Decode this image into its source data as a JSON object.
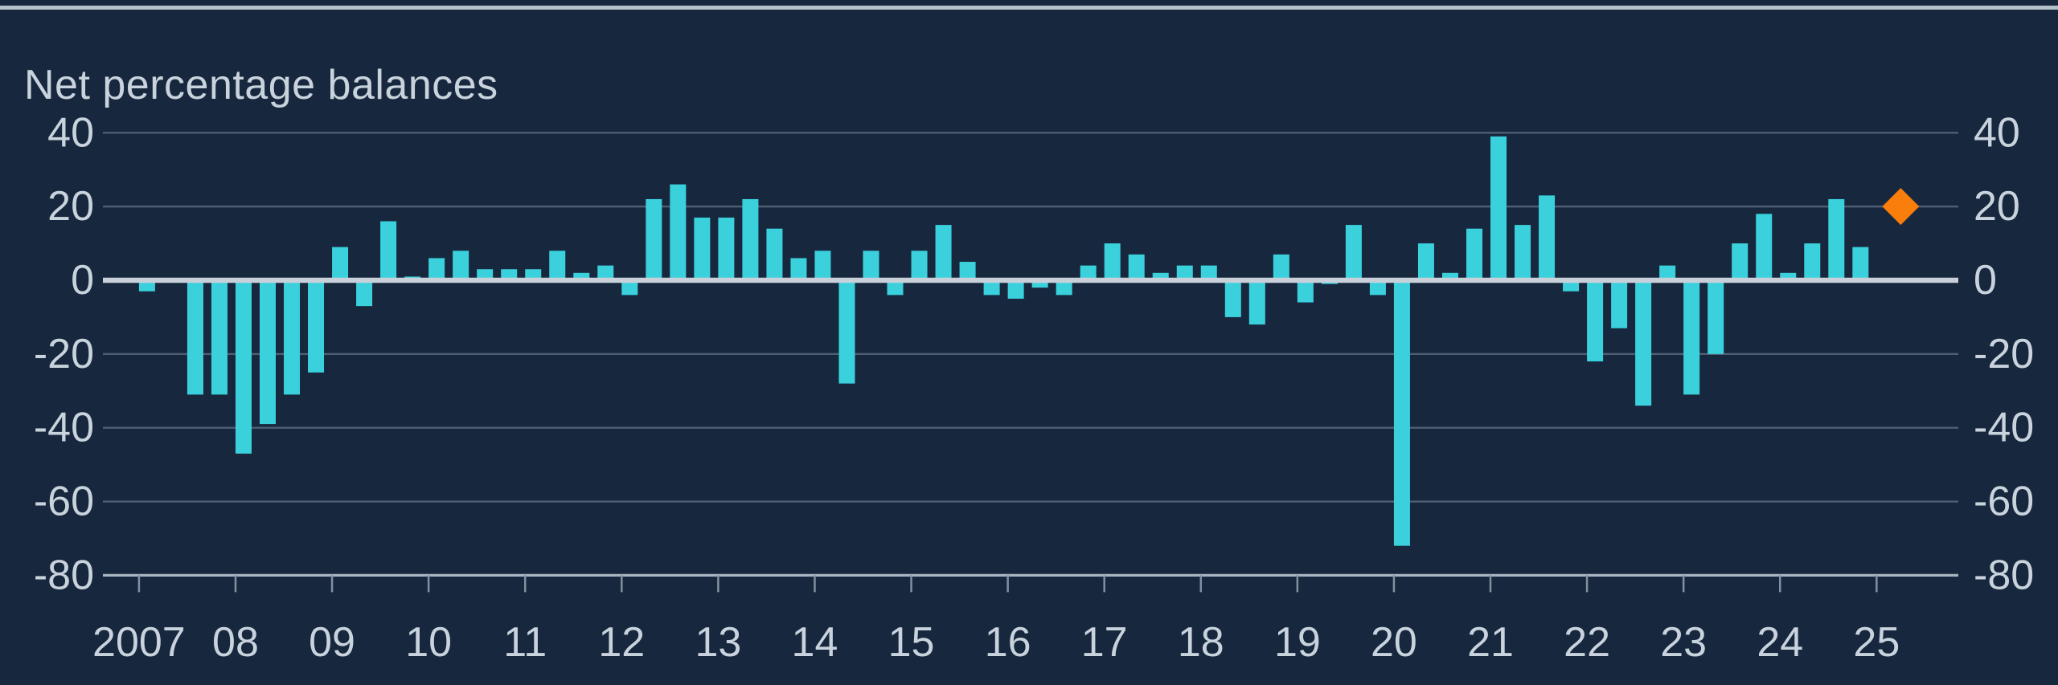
{
  "title": "Net percentage balances",
  "colors": {
    "background": "#17283E",
    "top_border": "#B5C1CB",
    "bar": "#3AD1DD",
    "diamond": "#F97E0C",
    "zero_line": "#C8D1DA",
    "gridline": "#4E5F73",
    "axis_line": "#A9B5C2",
    "tick_mark": "#8290A0",
    "text": "#C9D3DD"
  },
  "y_axis": {
    "left_labels": [
      "40",
      "20",
      "0",
      "-20",
      "-40",
      "-60",
      "-80"
    ],
    "right_labels": [
      "40",
      "20",
      "0",
      "-20",
      "-40",
      "-60",
      "-80"
    ]
  },
  "x_axis": {
    "labels": [
      "2007",
      "08",
      "09",
      "10",
      "11",
      "12",
      "13",
      "14",
      "15",
      "16",
      "17",
      "18",
      "19",
      "20",
      "21",
      "22",
      "23",
      "24",
      "25"
    ]
  },
  "chart_data": {
    "type": "bar",
    "title": "Net percentage balances",
    "xlabel": "",
    "ylabel": "Net percentage balances",
    "frequency": "quarterly",
    "ylim": [
      -80,
      40
    ],
    "grid": true,
    "legend_position": "none",
    "y_ticks": [
      40,
      20,
      0,
      -20,
      -40,
      -60,
      -80
    ],
    "x_year_labels": [
      "2007",
      "08",
      "09",
      "10",
      "11",
      "12",
      "13",
      "14",
      "15",
      "16",
      "17",
      "18",
      "19",
      "20",
      "21",
      "22",
      "23",
      "24",
      "25"
    ],
    "periods": [
      "2007 Q1",
      "2007 Q2",
      "2007 Q3",
      "2007 Q4",
      "2008 Q1",
      "2008 Q2",
      "2008 Q3",
      "2008 Q4",
      "2009 Q1",
      "2009 Q2",
      "2009 Q3",
      "2009 Q4",
      "2010 Q1",
      "2010 Q2",
      "2010 Q3",
      "2010 Q4",
      "2011 Q1",
      "2011 Q2",
      "2011 Q3",
      "2011 Q4",
      "2012 Q1",
      "2012 Q2",
      "2012 Q3",
      "2012 Q4",
      "2013 Q1",
      "2013 Q2",
      "2013 Q3",
      "2013 Q4",
      "2014 Q1",
      "2014 Q2",
      "2014 Q3",
      "2014 Q4",
      "2015 Q1",
      "2015 Q2",
      "2015 Q3",
      "2015 Q4",
      "2016 Q1",
      "2016 Q2",
      "2016 Q3",
      "2016 Q4",
      "2017 Q1",
      "2017 Q2",
      "2017 Q3",
      "2017 Q4",
      "2018 Q1",
      "2018 Q2",
      "2018 Q3",
      "2018 Q4",
      "2019 Q1",
      "2019 Q2",
      "2019 Q3",
      "2019 Q4",
      "2020 Q1",
      "2020 Q2",
      "2020 Q3",
      "2020 Q4",
      "2021 Q1",
      "2021 Q2",
      "2021 Q3",
      "2021 Q4",
      "2022 Q1",
      "2022 Q2",
      "2022 Q3",
      "2022 Q4",
      "2023 Q1",
      "2023 Q2",
      "2023 Q3",
      "2023 Q4",
      "2024 Q1",
      "2024 Q2",
      "2024 Q3",
      "2024 Q4"
    ],
    "values": [
      -3,
      0,
      -31,
      -31,
      -47,
      -39,
      -31,
      -25,
      9,
      -7,
      16,
      1,
      6,
      8,
      3,
      3,
      3,
      8,
      2,
      4,
      -4,
      22,
      26,
      17,
      17,
      22,
      14,
      6,
      8,
      -28,
      8,
      -4,
      8,
      15,
      5,
      -4,
      -5,
      -2,
      -4,
      4,
      10,
      7,
      2,
      4,
      4,
      -10,
      -12,
      7,
      -6,
      -1,
      15,
      -4,
      -72,
      10,
      2,
      14,
      39,
      15,
      23,
      -3,
      -22,
      -13,
      -34,
      4,
      -31,
      -20,
      10,
      18,
      2,
      10,
      22,
      9
    ],
    "expectation_marker": {
      "period": "2025 Q2",
      "value": 20,
      "shape": "diamond"
    }
  }
}
